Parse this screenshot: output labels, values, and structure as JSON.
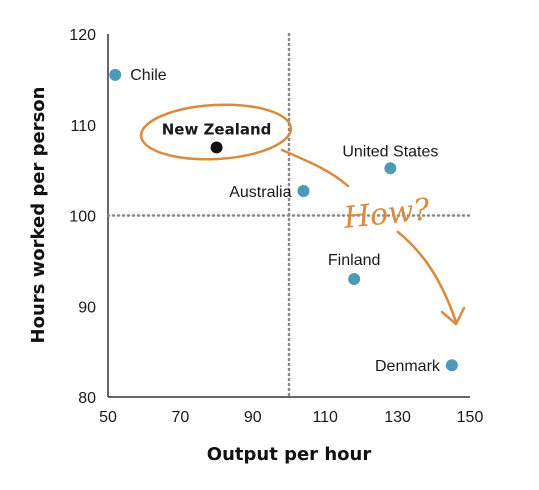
{
  "chart_data": {
    "type": "scatter",
    "xlabel": "Output per hour",
    "ylabel": "Hours worked per person",
    "xlim": [
      50,
      150
    ],
    "ylim": [
      80,
      120
    ],
    "xticks": [
      50,
      70,
      90,
      110,
      130,
      150
    ],
    "yticks": [
      80,
      90,
      100,
      110,
      120
    ],
    "reference_lines": {
      "x": 100,
      "y": 100,
      "style": "dotted"
    },
    "grid": false,
    "points": [
      {
        "name": "Chile",
        "x": 52,
        "y": 115.5
      },
      {
        "name": "New Zealand",
        "x": 80,
        "y": 107.5,
        "highlight": true
      },
      {
        "name": "Australia",
        "x": 104,
        "y": 102.7
      },
      {
        "name": "United States",
        "x": 128,
        "y": 105.2
      },
      {
        "name": "Finland",
        "x": 118,
        "y": 93
      },
      {
        "name": "Denmark",
        "x": 145,
        "y": 83.5
      }
    ],
    "annotation": {
      "text": "How?",
      "color": "#d98a3c"
    },
    "colors": {
      "point": "#4a9ab8",
      "highlight": "#111111",
      "annotation": "#d98a3c",
      "reference": "#888888"
    }
  }
}
